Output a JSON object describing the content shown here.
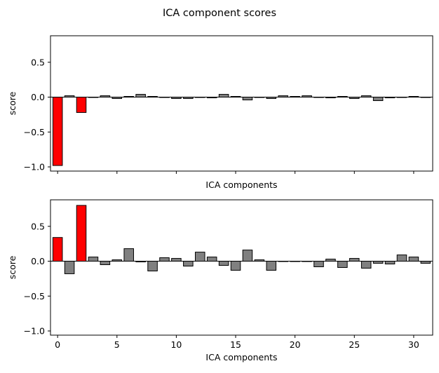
{
  "figure_title": "ICA component scores",
  "chart_data": [
    {
      "type": "bar",
      "title": "",
      "xlabel": "ICA components",
      "ylabel": "score",
      "xlim": [
        -0.6,
        31.6
      ],
      "ylim": [
        -1.06,
        0.88
      ],
      "yticks": [
        -1.0,
        -0.5,
        0.0,
        0.5
      ],
      "ytick_labels": [
        "−1.0",
        "−0.5",
        "0.0",
        "0.5"
      ],
      "xticks": [
        0,
        5,
        10,
        15,
        20,
        25,
        30
      ],
      "xtick_labels": [],
      "show_xtick_labels": false,
      "grid": false,
      "highlight_color": "#ff0000",
      "normal_color": "#808080",
      "edge_color": "#000000",
      "x": [
        0,
        1,
        2,
        3,
        4,
        5,
        6,
        7,
        8,
        9,
        10,
        11,
        12,
        13,
        14,
        15,
        16,
        17,
        18,
        19,
        20,
        21,
        22,
        23,
        24,
        25,
        26,
        27,
        28,
        29,
        30,
        31
      ],
      "values": [
        -0.98,
        0.02,
        -0.22,
        0.0,
        0.02,
        -0.02,
        0.01,
        0.04,
        0.01,
        0.0,
        -0.02,
        -0.02,
        0.0,
        -0.01,
        0.04,
        0.01,
        -0.04,
        0.0,
        -0.02,
        0.02,
        0.01,
        0.02,
        0.0,
        -0.01,
        0.01,
        -0.02,
        0.02,
        -0.05,
        -0.01,
        0.0,
        0.01,
        0.0
      ],
      "highlighted": [
        0,
        2
      ]
    },
    {
      "type": "bar",
      "title": "",
      "xlabel": "ICA components",
      "ylabel": "score",
      "xlim": [
        -0.6,
        31.6
      ],
      "ylim": [
        -1.06,
        0.88
      ],
      "yticks": [
        -1.0,
        -0.5,
        0.0,
        0.5
      ],
      "ytick_labels": [
        "−1.0",
        "−0.5",
        "0.0",
        "0.5"
      ],
      "xticks": [
        0,
        5,
        10,
        15,
        20,
        25,
        30
      ],
      "xtick_labels": [
        "0",
        "5",
        "10",
        "15",
        "20",
        "25",
        "30"
      ],
      "show_xtick_labels": true,
      "grid": false,
      "highlight_color": "#ff0000",
      "normal_color": "#808080",
      "edge_color": "#000000",
      "x": [
        0,
        1,
        2,
        3,
        4,
        5,
        6,
        7,
        8,
        9,
        10,
        11,
        12,
        13,
        14,
        15,
        16,
        17,
        18,
        19,
        20,
        21,
        22,
        23,
        24,
        25,
        26,
        27,
        28,
        29,
        30,
        31
      ],
      "values": [
        0.34,
        -0.18,
        0.8,
        0.06,
        -0.05,
        0.02,
        0.18,
        -0.01,
        -0.14,
        0.05,
        0.04,
        -0.07,
        0.13,
        0.06,
        -0.06,
        -0.13,
        0.16,
        0.02,
        -0.13,
        0.0,
        0.0,
        0.0,
        -0.08,
        0.03,
        -0.09,
        0.04,
        -0.1,
        -0.03,
        -0.04,
        0.09,
        0.06,
        -0.03
      ],
      "highlighted": [
        0,
        2
      ]
    }
  ]
}
